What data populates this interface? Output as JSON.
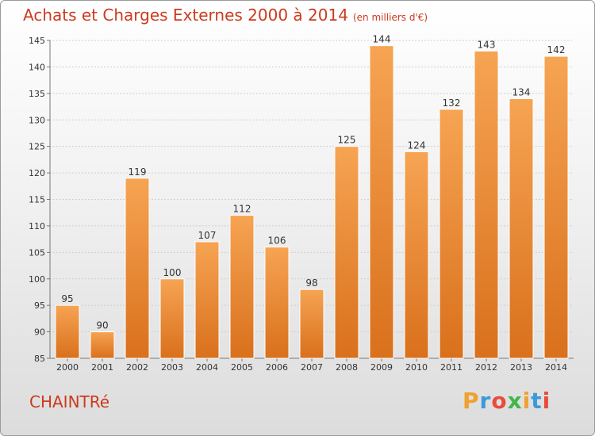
{
  "title": "Achats et Charges Externes 2000 à 2014",
  "subtitle": "(en milliers d'€)",
  "place": "CHAINTRé",
  "logo": {
    "letters": [
      "P",
      "r",
      "o",
      "x",
      "i",
      "t",
      "i"
    ],
    "colors": [
      "#f0a030",
      "#3b9ad9",
      "#e84c3c",
      "#43b649",
      "#f0a030",
      "#3b9ad9",
      "#e84c3c"
    ]
  },
  "colors": {
    "bar_top": "#f6a453",
    "bar_bottom": "#d9701c",
    "title": "#cc3a1e"
  },
  "chart_data": {
    "type": "bar",
    "title": "Achats et Charges Externes 2000 à 2014",
    "subtitle": "(en milliers d'€)",
    "categories": [
      "2000",
      "2001",
      "2002",
      "2003",
      "2004",
      "2005",
      "2006",
      "2007",
      "2008",
      "2009",
      "2010",
      "2011",
      "2012",
      "2013",
      "2014"
    ],
    "values": [
      95,
      90,
      119,
      100,
      107,
      112,
      106,
      98,
      125,
      144,
      124,
      132,
      143,
      134,
      142
    ],
    "ylim": [
      85,
      145
    ],
    "yticks": [
      85,
      90,
      95,
      100,
      105,
      110,
      115,
      120,
      125,
      130,
      135,
      140,
      145
    ],
    "xlabel": "",
    "ylabel": "",
    "grid": true,
    "data_labels": true
  }
}
